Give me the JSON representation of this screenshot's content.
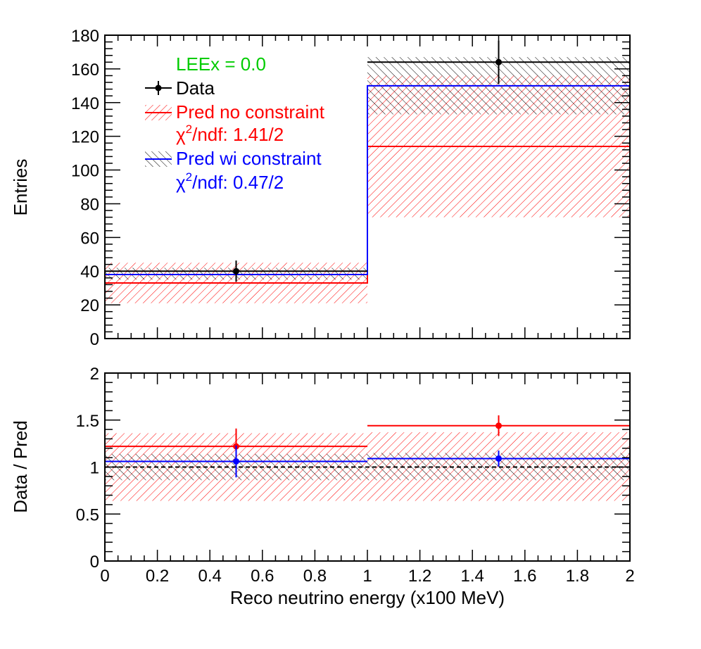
{
  "colors": {
    "data": "#000000",
    "pred_no_constraint": "#ff0000",
    "pred_wi_constraint": "#0000ff",
    "leex": "#00cc00"
  },
  "chart_data": [
    {
      "type": "histogram",
      "panel": "top",
      "ylabel": "Entries",
      "xlim": [
        0,
        2
      ],
      "ylim": [
        0,
        180
      ],
      "yticks": [
        0,
        20,
        40,
        60,
        80,
        100,
        120,
        140,
        160,
        180
      ],
      "bin_edges": [
        0,
        1,
        2
      ],
      "legend": {
        "placement": "top-left",
        "header": "LEEx = 0.0",
        "entries": [
          {
            "label": "Data",
            "series": "data"
          },
          {
            "label": "Pred no constraint",
            "series": "pred_no_constraint",
            "chi2_label": "χ",
            "chi2_sup": "2",
            "chi2_rest": "/ndf: 1.41/2"
          },
          {
            "label": "Pred wi constraint",
            "series": "pred_wi_constraint",
            "chi2_label": "χ",
            "chi2_sup": "2",
            "chi2_rest": "/ndf: 0.47/2"
          }
        ]
      },
      "series": [
        {
          "name": "Pred no constraint",
          "key": "pred_no_constraint",
          "style": "step",
          "values": [
            33,
            114
          ],
          "band_low": [
            21,
            72
          ],
          "band_high": [
            45,
            156
          ]
        },
        {
          "name": "Pred wi constraint",
          "key": "pred_wi_constraint",
          "style": "step",
          "values": [
            38,
            150
          ],
          "band_low": [
            35,
            133
          ],
          "band_high": [
            42,
            167
          ]
        },
        {
          "name": "Data",
          "key": "data",
          "style": "points",
          "x": [
            0.5,
            1.5
          ],
          "values": [
            40,
            164
          ],
          "err": [
            6.3,
            12.8
          ],
          "hline": true
        }
      ]
    },
    {
      "type": "ratio",
      "panel": "bottom",
      "xlabel": "Reco neutrino energy (x100 MeV)",
      "ylabel": "Data / Pred",
      "xlim": [
        0,
        2
      ],
      "ylim": [
        0,
        2
      ],
      "xticks": [
        0,
        0.2,
        0.4,
        0.6,
        0.8,
        1,
        1.2,
        1.4,
        1.6,
        1.8,
        2
      ],
      "xtick_labels": [
        "0",
        "0.2",
        "0.4",
        "0.6",
        "0.8",
        "1",
        "1.2",
        "1.4",
        "1.6",
        "1.8",
        "2"
      ],
      "yticks": [
        0,
        0.5,
        1,
        1.5,
        2
      ],
      "ytick_labels": [
        "0",
        "0.5",
        "1",
        "1.5",
        "2"
      ],
      "reference_line": 1,
      "bands": [
        {
          "key": "pred_no_constraint",
          "low": [
            0.64,
            0.64
          ],
          "high": [
            1.36,
            1.37
          ]
        },
        {
          "key": "pred_wi_constraint",
          "low": [
            0.86,
            0.86
          ],
          "high": [
            1.14,
            1.15
          ]
        }
      ],
      "series": [
        {
          "key": "pred_no_constraint",
          "x": [
            0.5,
            1.5
          ],
          "values": [
            1.22,
            1.44
          ],
          "err": [
            0.19,
            0.11
          ]
        },
        {
          "key": "pred_wi_constraint",
          "x": [
            0.5,
            1.5
          ],
          "values": [
            1.06,
            1.09
          ],
          "err": [
            0.17,
            0.085
          ]
        }
      ]
    }
  ]
}
